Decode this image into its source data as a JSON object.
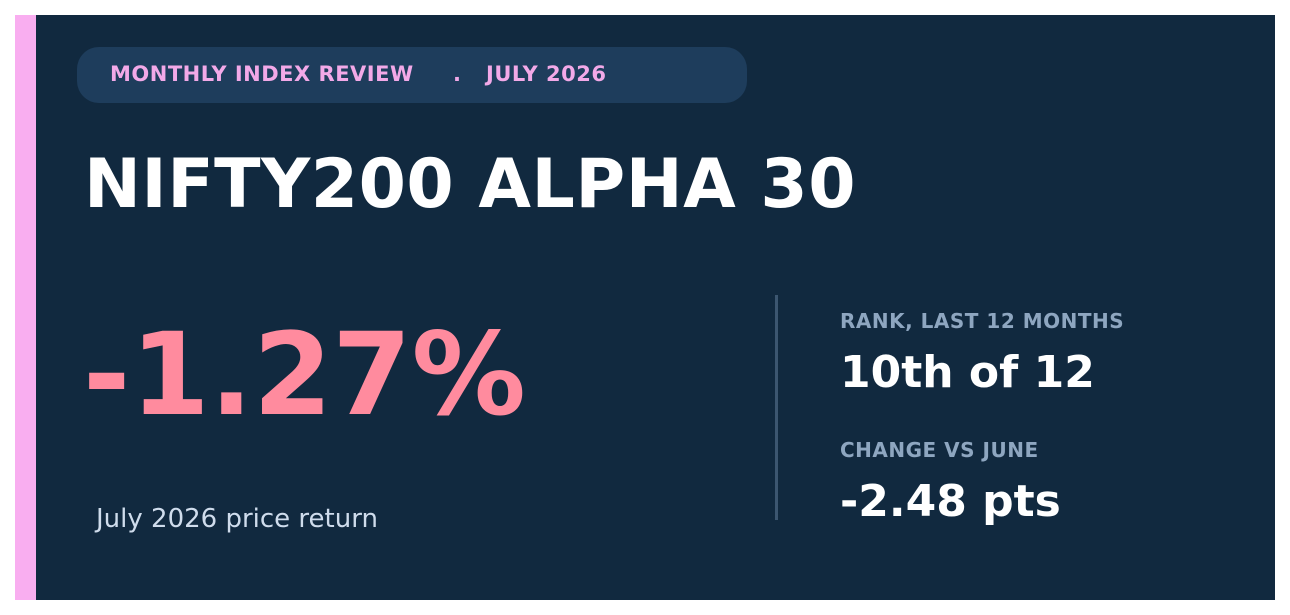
{
  "header": {
    "review_label": "MONTHLY INDEX REVIEW",
    "separator": ".",
    "period": "JULY 2026"
  },
  "index": {
    "name": "NIFTY200 ALPHA 30"
  },
  "performance": {
    "price_return": "-1.27%",
    "caption": "July 2026 price return"
  },
  "stats": {
    "rank_label": "RANK, LAST 12 MONTHS",
    "rank_value": "10th of 12",
    "change_label": "CHANGE VS JUNE",
    "change_value": "-2.48 pts"
  },
  "colors": {
    "background": "#11293f",
    "accent": "#f9aef0",
    "pill_background": "#1e3d5c",
    "pill_text": "#f2a9e8",
    "negative_return": "#ff8b9e",
    "label": "#8ea6c0",
    "value": "#ffffff"
  }
}
